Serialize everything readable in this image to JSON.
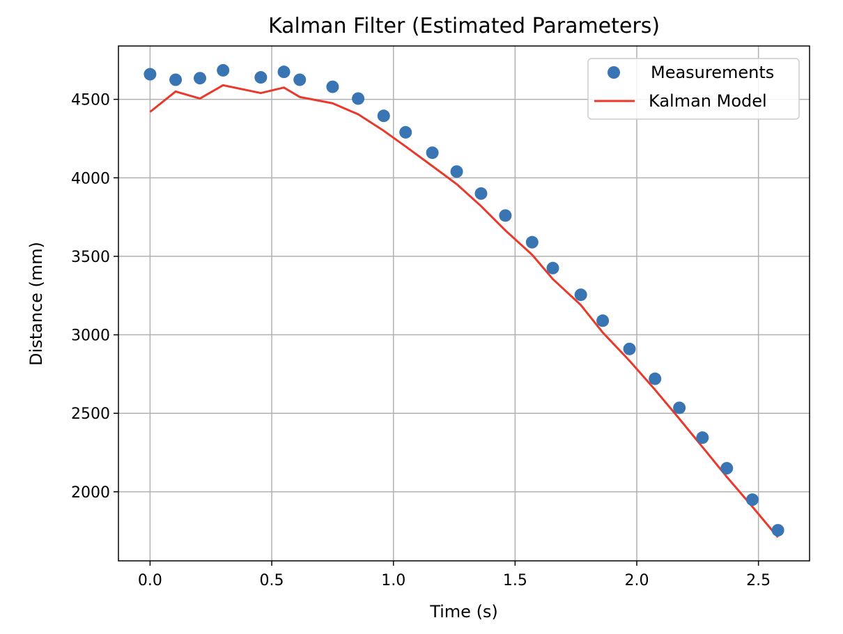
{
  "chart_data": {
    "type": "scatter",
    "title": "Kalman Filter (Estimated Parameters)",
    "xlabel": "Time (s)",
    "ylabel": "Distance (mm)",
    "xlim": [
      -0.13,
      2.71
    ],
    "ylim": [
      1560,
      4840
    ],
    "xticks": [
      {
        "value": 0.0,
        "label": "0.0"
      },
      {
        "value": 0.5,
        "label": "0.5"
      },
      {
        "value": 1.0,
        "label": "1.0"
      },
      {
        "value": 1.5,
        "label": "1.5"
      },
      {
        "value": 2.0,
        "label": "2.0"
      },
      {
        "value": 2.5,
        "label": "2.5"
      }
    ],
    "yticks": [
      {
        "value": 2000,
        "label": "2000"
      },
      {
        "value": 2500,
        "label": "2500"
      },
      {
        "value": 3000,
        "label": "3000"
      },
      {
        "value": 3500,
        "label": "3500"
      },
      {
        "value": 4000,
        "label": "4000"
      },
      {
        "value": 4500,
        "label": "4500"
      }
    ],
    "grid": true,
    "legend_position": "top-right",
    "series": [
      {
        "name": "Measurements",
        "kind": "scatter",
        "color": "#3a75b3",
        "points": [
          [
            0.0,
            4660
          ],
          [
            0.105,
            4625
          ],
          [
            0.205,
            4635
          ],
          [
            0.3,
            4685
          ],
          [
            0.455,
            4640
          ],
          [
            0.55,
            4675
          ],
          [
            0.615,
            4625
          ],
          [
            0.75,
            4580
          ],
          [
            0.855,
            4505
          ],
          [
            0.96,
            4395
          ],
          [
            1.05,
            4290
          ],
          [
            1.16,
            4160
          ],
          [
            1.26,
            4040
          ],
          [
            1.36,
            3900
          ],
          [
            1.46,
            3760
          ],
          [
            1.57,
            3590
          ],
          [
            1.655,
            3425
          ],
          [
            1.77,
            3255
          ],
          [
            1.86,
            3090
          ],
          [
            1.97,
            2910
          ],
          [
            2.075,
            2720
          ],
          [
            2.175,
            2535
          ],
          [
            2.27,
            2345
          ],
          [
            2.37,
            2150
          ],
          [
            2.475,
            1950
          ],
          [
            2.58,
            1755
          ]
        ]
      },
      {
        "name": "Kalman Model",
        "kind": "line",
        "color": "#e8392b",
        "points": [
          [
            0.0,
            4420
          ],
          [
            0.105,
            4550
          ],
          [
            0.205,
            4505
          ],
          [
            0.3,
            4590
          ],
          [
            0.455,
            4540
          ],
          [
            0.55,
            4575
          ],
          [
            0.615,
            4515
          ],
          [
            0.75,
            4475
          ],
          [
            0.855,
            4405
          ],
          [
            0.96,
            4300
          ],
          [
            1.05,
            4200
          ],
          [
            1.16,
            4075
          ],
          [
            1.26,
            3960
          ],
          [
            1.36,
            3820
          ],
          [
            1.46,
            3665
          ],
          [
            1.57,
            3510
          ],
          [
            1.655,
            3355
          ],
          [
            1.77,
            3190
          ],
          [
            1.86,
            3015
          ],
          [
            1.97,
            2835
          ],
          [
            2.075,
            2650
          ],
          [
            2.175,
            2465
          ],
          [
            2.27,
            2285
          ],
          [
            2.37,
            2095
          ],
          [
            2.475,
            1905
          ],
          [
            2.58,
            1710
          ]
        ]
      }
    ]
  }
}
